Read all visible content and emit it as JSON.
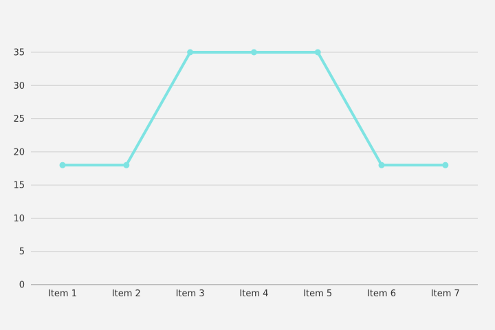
{
  "chart_data": {
    "type": "line",
    "categories": [
      "Item 1",
      "Item 2",
      "Item 3",
      "Item 4",
      "Item 5",
      "Item 6",
      "Item 7"
    ],
    "series": [
      {
        "values": [
          18,
          18,
          35,
          35,
          35,
          18,
          18
        ]
      }
    ],
    "ylim": [
      0,
      35
    ],
    "yticks": [
      "0",
      "5",
      "10",
      "15",
      "20",
      "25",
      "30",
      "35"
    ],
    "grid": true,
    "legend": "none",
    "colors": {
      "line": "#7ee3e2",
      "grid": "#cfcfcf",
      "axis": "#8c8c8c",
      "background": "#f3f3f3"
    }
  }
}
